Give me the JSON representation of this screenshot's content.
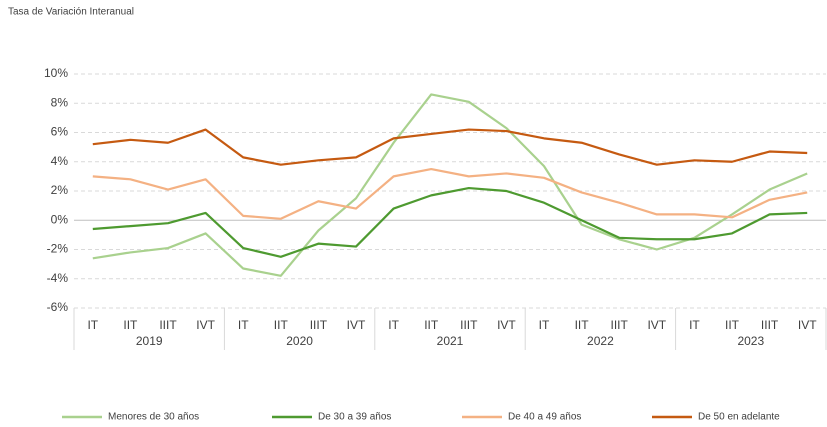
{
  "chart_data": {
    "type": "line",
    "title": "Tasa de Variación Interanual",
    "categories": [
      "IT",
      "IIT",
      "IIIT",
      "IVT",
      "IT",
      "IIT",
      "IIIT",
      "IVT",
      "IT",
      "IIT",
      "IIIT",
      "IVT",
      "IT",
      "IIT",
      "IIIT",
      "IVT",
      "IT",
      "IIT",
      "IIIT",
      "IVT"
    ],
    "groups": [
      "2019",
      "2020",
      "2021",
      "2022",
      "2023"
    ],
    "series": [
      {
        "name": "Menores de 30 años",
        "color": "#a9d18e",
        "values": [
          -2.6,
          -2.2,
          -1.9,
          -0.9,
          -3.3,
          -3.8,
          -0.7,
          1.5,
          5.3,
          8.6,
          8.1,
          6.3,
          3.7,
          -0.3,
          -1.3,
          -2.0,
          -1.2,
          0.4,
          2.1,
          3.2
        ]
      },
      {
        "name": "De 30 a 39 años",
        "color": "#4e9a30",
        "values": [
          -0.6,
          -0.4,
          -0.2,
          0.5,
          -1.9,
          -2.5,
          -1.6,
          -1.8,
          0.8,
          1.7,
          2.2,
          2.0,
          1.2,
          0.0,
          -1.2,
          -1.3,
          -1.3,
          -0.9,
          0.4,
          0.5
        ]
      },
      {
        "name": "De 40 a 49 años",
        "color": "#f4b183",
        "values": [
          3.0,
          2.8,
          2.1,
          2.8,
          0.3,
          0.1,
          1.3,
          0.8,
          3.0,
          3.5,
          3.0,
          3.2,
          2.9,
          1.9,
          1.2,
          0.4,
          0.4,
          0.2,
          1.4,
          1.9
        ]
      },
      {
        "name": "De 50 en adelante",
        "color": "#c55a11",
        "values": [
          5.2,
          5.5,
          5.3,
          6.2,
          4.3,
          3.8,
          4.1,
          4.3,
          5.6,
          5.9,
          6.2,
          6.1,
          5.6,
          5.3,
          4.5,
          3.8,
          4.1,
          4.0,
          4.7,
          4.6
        ]
      }
    ],
    "ylim": [
      -6,
      10
    ],
    "yticks": [
      {
        "value": -6,
        "label": "-6%"
      },
      {
        "value": -4,
        "label": "-4%"
      },
      {
        "value": -2,
        "label": "-2%"
      },
      {
        "value": 0,
        "label": "0%"
      },
      {
        "value": 2,
        "label": "2%"
      },
      {
        "value": 4,
        "label": "4%"
      },
      {
        "value": 6,
        "label": "6%"
      },
      {
        "value": 8,
        "label": "8%"
      },
      {
        "value": 10,
        "label": "10%"
      }
    ],
    "grid": true,
    "legend": "bottom"
  }
}
